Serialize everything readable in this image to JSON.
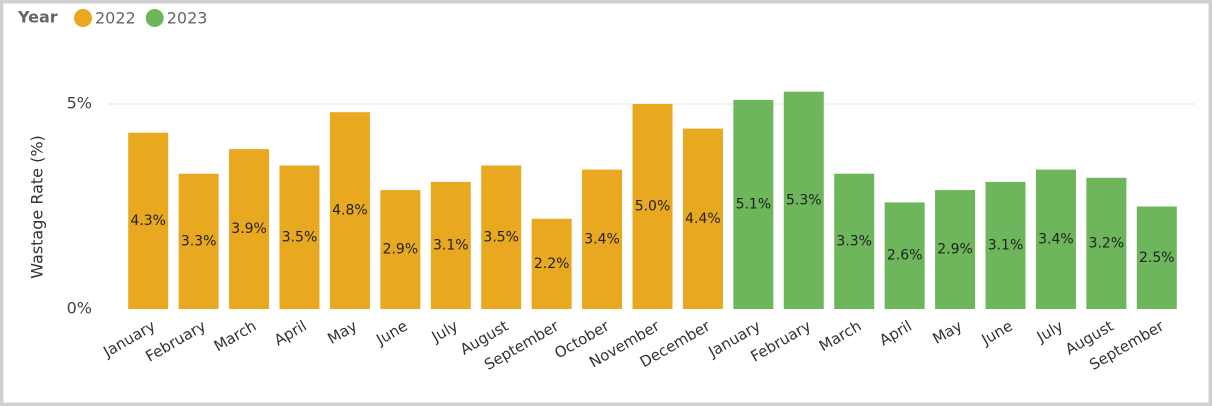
{
  "chart_data": {
    "type": "bar",
    "legend_title": "Year",
    "y_label": "Wastage Rate (%)",
    "categories": [
      "January",
      "February",
      "March",
      "April",
      "May",
      "June",
      "July",
      "August",
      "September",
      "October",
      "November",
      "December",
      "January",
      "February",
      "March",
      "April",
      "May",
      "June",
      "July",
      "August",
      "September"
    ],
    "series": [
      {
        "name": "2022",
        "color": "#E8A820",
        "values": [
          4.3,
          3.3,
          3.9,
          3.5,
          4.8,
          2.9,
          3.1,
          3.5,
          2.2,
          3.4,
          5.0,
          4.4,
          null,
          null,
          null,
          null,
          null,
          null,
          null,
          null,
          null
        ],
        "value_labels": [
          "4.3%",
          "3.3%",
          "3.9%",
          "3.5%",
          "4.8%",
          "2.9%",
          "3.1%",
          "3.5%",
          "2.2%",
          "3.4%",
          "5.0%",
          "4.4%",
          null,
          null,
          null,
          null,
          null,
          null,
          null,
          null,
          null
        ]
      },
      {
        "name": "2023",
        "color": "#6DB65B",
        "values": [
          null,
          null,
          null,
          null,
          null,
          null,
          null,
          null,
          null,
          null,
          null,
          null,
          5.1,
          5.3,
          3.3,
          2.6,
          2.9,
          3.1,
          3.4,
          3.2,
          2.5
        ],
        "value_labels": [
          null,
          null,
          null,
          null,
          null,
          null,
          null,
          null,
          null,
          null,
          null,
          null,
          "5.1%",
          "5.3%",
          "3.3%",
          "2.6%",
          "2.9%",
          "3.1%",
          "3.4%",
          "3.2%",
          "2.5%"
        ]
      }
    ],
    "ylim": [
      0,
      5.5
    ],
    "yticks": [
      {
        "value": 0,
        "label": "0%"
      },
      {
        "value": 5,
        "label": "5%"
      }
    ],
    "grid": true
  }
}
